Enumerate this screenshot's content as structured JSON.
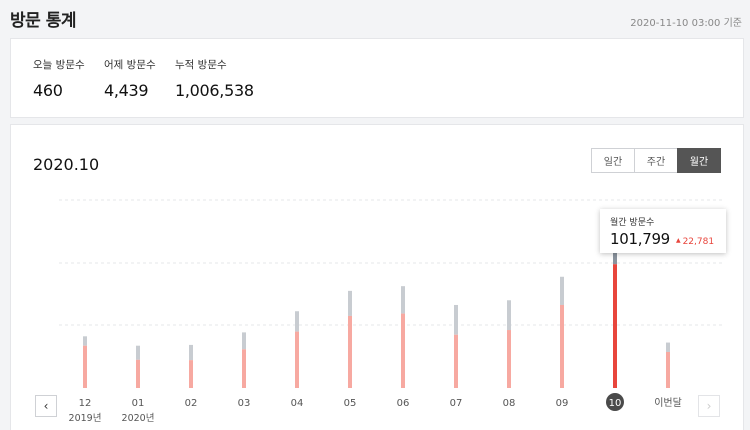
{
  "header": {
    "title": "방문 통계",
    "updated": "2020-11-10 03:00 기준"
  },
  "summary": [
    {
      "label": "오늘 방문수",
      "value": "460"
    },
    {
      "label": "어제 방문수",
      "value": "4,439"
    },
    {
      "label": "누적 방문수",
      "value": "1,006,538"
    }
  ],
  "chart_header": {
    "period": "2020.10"
  },
  "period_tabs": [
    {
      "label": "일간",
      "active": false
    },
    {
      "label": "주간",
      "active": false
    },
    {
      "label": "월간",
      "active": true
    }
  ],
  "tooltip": {
    "label": "월간 방문수",
    "value": "101,799",
    "delta_arrow": "▲",
    "delta": "22,781"
  },
  "colors": {
    "primary_bar": "#f7a9a1",
    "primary_bar_active": "#e8453c",
    "secondary_bar": "#c8ccd1",
    "secondary_bar_active": "#8a939d",
    "selected_marker": "#4a4a4a"
  },
  "icons": {
    "prev": "chevron-left-icon",
    "next": "chevron-right-icon"
  },
  "chart_data": {
    "type": "bar",
    "categories": [
      "12",
      "01",
      "02",
      "03",
      "04",
      "05",
      "06",
      "07",
      "08",
      "09",
      "10",
      "이번달"
    ],
    "category_sublabels": [
      "2019년",
      "2020년",
      "",
      "",
      "",
      "",
      "",
      "",
      "",
      "",
      "",
      ""
    ],
    "selected_index": 10,
    "total_values": [
      33000,
      27000,
      27500,
      35500,
      49000,
      62000,
      65000,
      53000,
      56000,
      71000,
      101799,
      29000
    ],
    "primary_values": [
      27000,
      18000,
      17800,
      24700,
      36000,
      46000,
      47500,
      34000,
      37000,
      53000,
      79018,
      23000
    ],
    "ylim": [
      0,
      120000
    ],
    "grid": true
  }
}
